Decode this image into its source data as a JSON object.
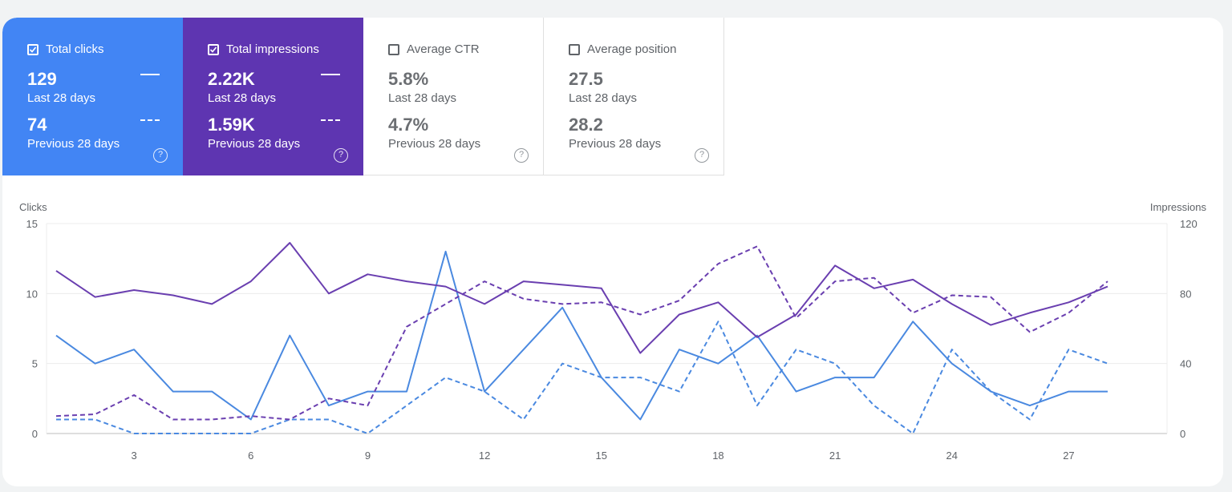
{
  "metrics": {
    "clicks": {
      "label": "Total clicks",
      "checked": true,
      "current": "129",
      "current_label": "Last 28 days",
      "previous": "74",
      "previous_label": "Previous 28 days",
      "color": "#4285f4"
    },
    "impressions": {
      "label": "Total impressions",
      "checked": true,
      "current": "2.22K",
      "current_label": "Last 28 days",
      "previous": "1.59K",
      "previous_label": "Previous 28 days",
      "color": "#5e35b1"
    },
    "ctr": {
      "label": "Average CTR",
      "checked": false,
      "current": "5.8%",
      "current_label": "Last 28 days",
      "previous": "4.7%",
      "previous_label": "Previous 28 days"
    },
    "position": {
      "label": "Average position",
      "checked": false,
      "current": "27.5",
      "current_label": "Last 28 days",
      "previous": "28.2",
      "previous_label": "Previous 28 days"
    }
  },
  "help_glyph": "?",
  "chart_data": {
    "type": "line",
    "x": [
      1,
      2,
      3,
      4,
      5,
      6,
      7,
      8,
      9,
      10,
      11,
      12,
      13,
      14,
      15,
      16,
      17,
      18,
      19,
      20,
      21,
      22,
      23,
      24,
      25,
      26,
      27,
      28
    ],
    "x_ticks": [
      3,
      6,
      9,
      12,
      15,
      18,
      21,
      24,
      27
    ],
    "y_left": {
      "label": "Clicks",
      "range": [
        0,
        15
      ],
      "ticks": [
        0,
        5,
        10,
        15
      ]
    },
    "y_right": {
      "label": "Impressions",
      "range": [
        0,
        120
      ],
      "ticks": [
        0,
        40,
        80,
        120
      ]
    },
    "grid": true,
    "series": [
      {
        "name": "Total clicks",
        "period": "Last 28 days",
        "axis": "left",
        "style": "solid",
        "color": "#4a89e0",
        "values": [
          7,
          5,
          6,
          3,
          3,
          1,
          7,
          2,
          3,
          3,
          13,
          3,
          6,
          9,
          4,
          1,
          6,
          5,
          7,
          3,
          4,
          4,
          8,
          5,
          3,
          2,
          3,
          3
        ]
      },
      {
        "name": "Total clicks",
        "period": "Previous 28 days",
        "axis": "left",
        "style": "dashed",
        "color": "#4a89e0",
        "values": [
          1,
          1,
          0,
          0,
          0,
          0,
          1,
          1,
          0,
          2,
          4,
          3,
          1,
          5,
          4,
          4,
          3,
          8,
          2,
          6,
          5,
          2,
          0,
          6,
          3,
          1,
          6,
          5
        ]
      },
      {
        "name": "Total impressions",
        "period": "Last 28 days",
        "axis": "right",
        "style": "solid",
        "color": "#6a3fb0",
        "values": [
          93,
          78,
          82,
          79,
          74,
          87,
          109,
          80,
          91,
          87,
          84,
          74,
          87,
          85,
          83,
          46,
          68,
          75,
          55,
          68,
          96,
          83,
          88,
          74,
          62,
          69,
          75,
          84
        ]
      },
      {
        "name": "Total impressions",
        "period": "Previous 28 days",
        "axis": "right",
        "style": "dashed",
        "color": "#6a3fb0",
        "values": [
          10,
          11,
          22,
          8,
          8,
          10,
          8,
          20,
          16,
          61,
          74,
          87,
          77,
          74,
          75,
          68,
          76,
          97,
          107,
          66,
          87,
          89,
          69,
          79,
          78,
          58,
          69,
          87
        ]
      }
    ]
  }
}
